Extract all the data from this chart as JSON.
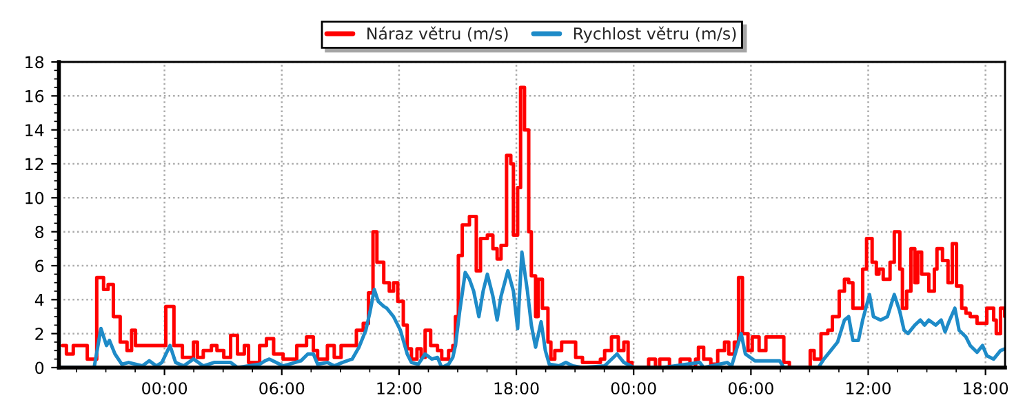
{
  "chart_data": {
    "type": "line",
    "legend": "top",
    "grid": true,
    "marker": "none",
    "line_style": "solid",
    "xlim": [
      "2000-01-01T18:36",
      "2000-01-03T19:00"
    ],
    "ylim": [
      0,
      18
    ],
    "xticks": [
      {
        "value": "2000-01-01T19:30",
        "label": null
      },
      {
        "value": "2000-01-01T21:00",
        "label": null
      },
      {
        "value": "2000-01-01T22:30",
        "label": null
      },
      {
        "value": "2000-01-02T00:00",
        "label": "00:00"
      },
      {
        "value": "2000-01-02T01:30",
        "label": null
      },
      {
        "value": "2000-01-02T03:00",
        "label": null
      },
      {
        "value": "2000-01-02T04:30",
        "label": null
      },
      {
        "value": "2000-01-02T06:00",
        "label": "06:00"
      },
      {
        "value": "2000-01-02T07:30",
        "label": null
      },
      {
        "value": "2000-01-02T09:00",
        "label": null
      },
      {
        "value": "2000-01-02T10:30",
        "label": null
      },
      {
        "value": "2000-01-02T12:00",
        "label": "12:00"
      },
      {
        "value": "2000-01-02T13:30",
        "label": null
      },
      {
        "value": "2000-01-02T15:00",
        "label": null
      },
      {
        "value": "2000-01-02T16:30",
        "label": null
      },
      {
        "value": "2000-01-02T18:00",
        "label": "18:00"
      },
      {
        "value": "2000-01-02T19:30",
        "label": null
      },
      {
        "value": "2000-01-02T21:00",
        "label": null
      },
      {
        "value": "2000-01-02T22:30",
        "label": null
      },
      {
        "value": "2000-01-03T00:00",
        "label": "00:00"
      },
      {
        "value": "2000-01-03T01:30",
        "label": null
      },
      {
        "value": "2000-01-03T03:00",
        "label": null
      },
      {
        "value": "2000-01-03T04:30",
        "label": null
      },
      {
        "value": "2000-01-03T06:00",
        "label": "06:00"
      },
      {
        "value": "2000-01-03T07:30",
        "label": null
      },
      {
        "value": "2000-01-03T09:00",
        "label": null
      },
      {
        "value": "2000-01-03T10:30",
        "label": null
      },
      {
        "value": "2000-01-03T12:00",
        "label": "12:00"
      },
      {
        "value": "2000-01-03T13:30",
        "label": null
      },
      {
        "value": "2000-01-03T15:00",
        "label": null
      },
      {
        "value": "2000-01-03T16:30",
        "label": null
      },
      {
        "value": "2000-01-03T18:00",
        "label": "18:00"
      }
    ],
    "yticks": [
      0,
      {
        "value": 0.5,
        "label": null
      },
      {
        "value": 1,
        "label": null
      },
      {
        "value": 1.5,
        "label": null
      },
      2,
      {
        "value": 2.5,
        "label": null
      },
      {
        "value": 3,
        "label": null
      },
      {
        "value": 3.5,
        "label": null
      },
      4,
      {
        "value": 4.5,
        "label": null
      },
      {
        "value": 5,
        "label": null
      },
      {
        "value": 5.5,
        "label": null
      },
      6,
      {
        "value": 6.5,
        "label": null
      },
      {
        "value": 7,
        "label": null
      },
      {
        "value": 7.5,
        "label": null
      },
      8,
      {
        "value": 8.5,
        "label": null
      },
      {
        "value": 9,
        "label": null
      },
      {
        "value": 9.5,
        "label": null
      },
      10,
      {
        "value": 10.5,
        "label": null
      },
      {
        "value": 11,
        "label": null
      },
      {
        "value": 11.5,
        "label": null
      },
      12,
      {
        "value": 12.5,
        "label": null
      },
      {
        "value": 13,
        "label": null
      },
      {
        "value": 13.5,
        "label": null
      },
      14,
      {
        "value": 14.5,
        "label": null
      },
      {
        "value": 15,
        "label": null
      },
      {
        "value": 15.5,
        "label": null
      },
      16,
      {
        "value": 16.5,
        "label": null
      },
      {
        "value": 17,
        "label": null
      },
      {
        "value": 17.5,
        "label": null
      },
      18
    ],
    "series": [
      {
        "name": "Náraz větru (m/s)",
        "color": "#ff0000",
        "type": "step",
        "x": [
          "2000-01-01T18:47",
          "2000-01-01T18:59",
          "2000-01-01T19:20",
          "2000-01-01T20:03",
          "2000-01-01T20:32",
          "2000-01-01T20:53",
          "2000-01-01T21:07",
          "2000-01-01T21:23",
          "2000-01-01T21:44",
          "2000-01-01T22:05",
          "2000-01-01T22:19",
          "2000-01-01T22:31",
          "2000-01-01T23:22",
          "2000-01-02T00:04",
          "2000-01-02T00:29",
          "2000-01-02T00:55",
          "2000-01-02T01:16",
          "2000-01-02T01:29",
          "2000-01-02T01:41",
          "2000-01-02T01:59",
          "2000-01-02T02:24",
          "2000-01-02T02:41",
          "2000-01-02T03:02",
          "2000-01-02T03:23",
          "2000-01-02T03:44",
          "2000-01-02T04:05",
          "2000-01-02T04:18",
          "2000-01-02T04:52",
          "2000-01-02T05:13",
          "2000-01-02T05:35",
          "2000-01-02T06:04",
          "2000-01-02T06:38",
          "2000-01-02T06:46",
          "2000-01-02T07:16",
          "2000-01-02T07:37",
          "2000-01-02T07:50",
          "2000-01-02T08:20",
          "2000-01-02T08:41",
          "2000-01-02T09:02",
          "2000-01-02T09:36",
          "2000-01-02T09:49",
          "2000-01-02T10:10",
          "2000-01-02T10:26",
          "2000-01-02T10:40",
          "2000-01-02T10:52",
          "2000-01-02T11:13",
          "2000-01-02T11:30",
          "2000-01-02T11:43",
          "2000-01-02T11:56",
          "2000-01-02T12:13",
          "2000-01-02T12:25",
          "2000-01-02T12:38",
          "2000-01-02T12:55",
          "2000-01-02T13:08",
          "2000-01-02T13:20",
          "2000-01-02T13:37",
          "2000-01-02T13:58",
          "2000-01-02T14:11",
          "2000-01-02T14:32",
          "2000-01-02T14:45",
          "2000-01-02T14:53",
          "2000-01-02T15:02",
          "2000-01-02T15:14",
          "2000-01-02T15:36",
          "2000-01-02T15:57",
          "2000-01-02T16:10",
          "2000-01-02T16:31",
          "2000-01-02T16:48",
          "2000-01-02T17:01",
          "2000-01-02T17:13",
          "2000-01-02T17:30",
          "2000-01-02T17:43",
          "2000-01-02T17:51",
          "2000-01-02T18:04",
          "2000-01-02T18:13",
          "2000-01-02T18:25",
          "2000-01-02T18:38",
          "2000-01-02T18:46",
          "2000-01-02T18:59",
          "2000-01-02T19:07",
          "2000-01-02T19:20",
          "2000-01-02T19:37",
          "2000-01-02T19:46",
          "2000-01-02T19:58",
          "2000-01-02T20:19",
          "2000-01-02T20:45",
          "2000-01-02T21:02",
          "2000-01-02T21:23",
          "2000-01-02T22:18",
          "2000-01-02T22:31",
          "2000-01-02T22:52",
          "2000-01-02T23:13",
          "2000-01-02T23:30",
          "2000-01-02T23:43",
          "2000-01-02T23:55",
          "2000-01-03T00:46",
          "2000-01-03T01:07",
          "2000-01-03T01:20",
          "2000-01-03T01:50",
          "2000-01-03T02:23",
          "2000-01-03T02:53",
          "2000-01-03T03:10",
          "2000-01-03T03:19",
          "2000-01-03T03:35",
          "2000-01-03T03:57",
          "2000-01-03T04:18",
          "2000-01-03T04:39",
          "2000-01-03T04:52",
          "2000-01-03T05:09",
          "2000-01-03T05:22",
          "2000-01-03T05:34",
          "2000-01-03T05:51",
          "2000-01-03T06:04",
          "2000-01-03T06:25",
          "2000-01-03T06:46",
          "2000-01-03T07:20",
          "2000-01-03T07:41",
          "2000-01-03T07:58",
          "2000-01-03T08:44",
          "2000-01-03T09:02",
          "2000-01-03T09:14",
          "2000-01-03T09:35",
          "2000-01-03T09:56",
          "2000-01-03T10:10",
          "2000-01-03T10:31",
          "2000-01-03T10:47",
          "2000-01-03T11:00",
          "2000-01-03T11:13",
          "2000-01-03T11:34",
          "2000-01-03T11:43",
          "2000-01-03T11:55",
          "2000-01-03T12:12",
          "2000-01-03T12:25",
          "2000-01-03T12:33",
          "2000-01-03T12:46",
          "2000-01-03T13:07",
          "2000-01-03T13:20",
          "2000-01-03T13:37",
          "2000-01-03T13:45",
          "2000-01-03T13:58",
          "2000-01-03T14:11",
          "2000-01-03T14:23",
          "2000-01-03T14:32",
          "2000-01-03T14:44",
          "2000-01-03T15:06",
          "2000-01-03T15:23",
          "2000-01-03T15:31",
          "2000-01-03T15:48",
          "2000-01-03T16:05",
          "2000-01-03T16:18",
          "2000-01-03T16:31",
          "2000-01-03T16:47",
          "2000-01-03T17:00",
          "2000-01-03T17:13",
          "2000-01-03T17:34",
          "2000-01-03T18:04",
          "2000-01-03T18:25",
          "2000-01-03T18:33",
          "2000-01-03T18:46",
          "2000-01-03T18:59"
        ],
        "values": [
          1.3,
          0.8,
          1.3,
          0.5,
          5.3,
          4.6,
          4.9,
          3.0,
          1.5,
          1.0,
          2.2,
          1.3,
          1.3,
          3.6,
          1.3,
          0.6,
          0.6,
          1.5,
          0.6,
          1.0,
          1.3,
          1.0,
          0.6,
          1.9,
          0.8,
          1.3,
          0.3,
          1.3,
          1.7,
          0.8,
          0.5,
          0.5,
          1.3,
          1.8,
          1.0,
          0.5,
          1.3,
          0.6,
          1.3,
          1.3,
          2.2,
          2.6,
          4.4,
          8.0,
          6.2,
          5.0,
          4.5,
          5.0,
          3.9,
          2.5,
          1.1,
          0.5,
          1.1,
          0.6,
          2.2,
          1.3,
          1.0,
          0.5,
          1.0,
          1.3,
          3.0,
          6.6,
          8.4,
          8.9,
          5.7,
          7.6,
          7.8,
          7.0,
          6.4,
          7.2,
          12.5,
          12.0,
          7.8,
          10.6,
          16.5,
          14.0,
          8.0,
          5.4,
          3.0,
          5.2,
          3.5,
          1.5,
          0.5,
          1.0,
          1.5,
          1.5,
          0.6,
          0.3,
          0.5,
          1.0,
          1.8,
          1.0,
          1.5,
          0.3,
          0,
          0.5,
          0,
          0.5,
          0,
          0.5,
          0,
          0.5,
          1.2,
          0.5,
          0.2,
          1.0,
          1.5,
          0.8,
          1.5,
          5.3,
          2.0,
          1.0,
          1.8,
          1.0,
          1.8,
          1.8,
          0.3,
          0,
          0,
          1.0,
          0.5,
          2.0,
          2.2,
          3.0,
          4.5,
          5.2,
          5.0,
          3.5,
          3.5,
          5.8,
          7.6,
          6.2,
          5.5,
          5.8,
          5.2,
          6.2,
          8.0,
          5.8,
          3.5,
          4.5,
          7.0,
          5.0,
          6.8,
          5.5,
          4.5,
          5.8,
          7.0,
          6.3,
          5.0,
          7.3,
          4.8,
          3.5,
          3.2,
          3.0,
          2.6,
          3.5,
          2.8,
          2.0,
          3.5,
          3.0
        ]
      },
      {
        "name": "Rychlost větru (m/s)",
        "color": "#1e8bc8",
        "x": [
          "2000-01-01T18:38",
          "2000-01-01T20:24",
          "2000-01-01T20:45",
          "2000-01-01T21:02",
          "2000-01-01T21:11",
          "2000-01-01T21:28",
          "2000-01-01T21:49",
          "2000-01-01T22:10",
          "2000-01-01T22:52",
          "2000-01-01T23:13",
          "2000-01-01T23:35",
          "2000-01-01T23:52",
          "2000-01-02T00:17",
          "2000-01-02T00:34",
          "2000-01-02T00:59",
          "2000-01-02T01:29",
          "2000-01-02T01:59",
          "2000-01-02T02:32",
          "2000-01-02T03:23",
          "2000-01-02T03:44",
          "2000-01-02T04:52",
          "2000-01-02T05:09",
          "2000-01-02T05:22",
          "2000-01-02T06:04",
          "2000-01-02T06:59",
          "2000-01-02T07:20",
          "2000-01-02T07:37",
          "2000-01-02T07:50",
          "2000-01-02T08:20",
          "2000-01-02T08:41",
          "2000-01-02T09:06",
          "2000-01-02T09:36",
          "2000-01-02T09:57",
          "2000-01-02T10:18",
          "2000-01-02T10:31",
          "2000-01-02T10:44",
          "2000-01-02T10:56",
          "2000-01-02T11:13",
          "2000-01-02T11:22",
          "2000-01-02T11:43",
          "2000-01-02T12:04",
          "2000-01-02T12:25",
          "2000-01-02T12:38",
          "2000-01-02T12:59",
          "2000-01-02T13:20",
          "2000-01-02T13:41",
          "2000-01-02T13:58",
          "2000-01-02T14:11",
          "2000-01-02T14:32",
          "2000-01-02T14:45",
          "2000-01-02T14:53",
          "2000-01-02T15:06",
          "2000-01-02T15:23",
          "2000-01-02T15:36",
          "2000-01-02T15:49",
          "2000-01-02T16:05",
          "2000-01-02T16:18",
          "2000-01-02T16:31",
          "2000-01-02T16:48",
          "2000-01-02T17:01",
          "2000-01-02T17:13",
          "2000-01-02T17:34",
          "2000-01-02T17:51",
          "2000-01-02T18:04",
          "2000-01-02T18:17",
          "2000-01-02T18:34",
          "2000-01-02T18:46",
          "2000-01-02T18:59",
          "2000-01-02T19:16",
          "2000-01-02T19:29",
          "2000-01-02T19:41",
          "2000-01-02T20:11",
          "2000-01-02T20:32",
          "2000-01-02T20:53",
          "2000-01-02T21:23",
          "2000-01-02T22:31",
          "2000-01-02T23:09",
          "2000-01-02T23:30",
          "2000-01-02T23:51",
          "2000-01-03T00:04",
          "2000-01-03T01:29",
          "2000-01-03T03:23",
          "2000-01-03T03:35",
          "2000-01-03T04:47",
          "2000-01-03T05:01",
          "2000-01-03T05:30",
          "2000-01-03T05:43",
          "2000-01-03T06:12",
          "2000-01-03T07:28",
          "2000-01-03T07:41",
          "2000-01-03T09:27",
          "2000-01-03T09:44",
          "2000-01-03T10:05",
          "2000-01-03T10:26",
          "2000-01-03T10:47",
          "2000-01-03T11:00",
          "2000-01-03T11:13",
          "2000-01-03T11:30",
          "2000-01-03T11:43",
          "2000-01-03T12:04",
          "2000-01-03T12:16",
          "2000-01-03T12:38",
          "2000-01-03T12:59",
          "2000-01-03T13:20",
          "2000-01-03T13:37",
          "2000-01-03T13:50",
          "2000-01-03T14:02",
          "2000-01-03T14:23",
          "2000-01-03T14:40",
          "2000-01-03T14:53",
          "2000-01-03T15:06",
          "2000-01-03T15:27",
          "2000-01-03T15:44",
          "2000-01-03T15:56",
          "2000-01-03T16:10",
          "2000-01-03T16:26",
          "2000-01-03T16:39",
          "2000-01-03T17:00",
          "2000-01-03T17:13",
          "2000-01-03T17:34",
          "2000-01-03T17:51",
          "2000-01-03T18:04",
          "2000-01-03T18:25",
          "2000-01-03T18:46",
          "2000-01-03T18:59"
        ],
        "values": [
          0,
          0,
          2.3,
          1.3,
          1.6,
          0.8,
          0.2,
          0.3,
          0.1,
          0.4,
          0.1,
          0.3,
          1.3,
          0.3,
          0.1,
          0.5,
          0.1,
          0.3,
          0.3,
          0,
          0.2,
          0.4,
          0.5,
          0.1,
          0.4,
          0.8,
          0.8,
          0.2,
          0.3,
          0.1,
          0.3,
          0.5,
          1.2,
          2.2,
          3.3,
          4.6,
          3.9,
          3.6,
          3.5,
          3.0,
          2.2,
          0.8,
          0.3,
          0.2,
          0.8,
          0.5,
          0.6,
          0.0,
          0.2,
          0.6,
          1.3,
          3.3,
          5.6,
          5.2,
          4.5,
          3.0,
          4.5,
          5.5,
          4.2,
          2.8,
          4.2,
          5.7,
          4.5,
          2.3,
          6.8,
          4.5,
          2.5,
          1.2,
          2.7,
          1.0,
          0.2,
          0.1,
          0.3,
          0.1,
          0,
          0.1,
          0.8,
          0.3,
          0.1,
          0,
          0,
          0.3,
          0,
          0.3,
          0.1,
          2.0,
          0.8,
          0.4,
          0.4,
          0,
          0,
          0.5,
          1.0,
          1.5,
          2.8,
          3.0,
          1.6,
          1.6,
          2.8,
          4.3,
          3.0,
          2.8,
          3.0,
          4.3,
          3.3,
          2.2,
          2.0,
          2.5,
          2.8,
          2.5,
          2.8,
          2.5,
          2.8,
          2.1,
          2.8,
          3.5,
          2.2,
          1.8,
          1.3,
          0.9,
          1.3,
          0.7,
          0.5,
          1.0,
          1.1
        ]
      }
    ]
  }
}
